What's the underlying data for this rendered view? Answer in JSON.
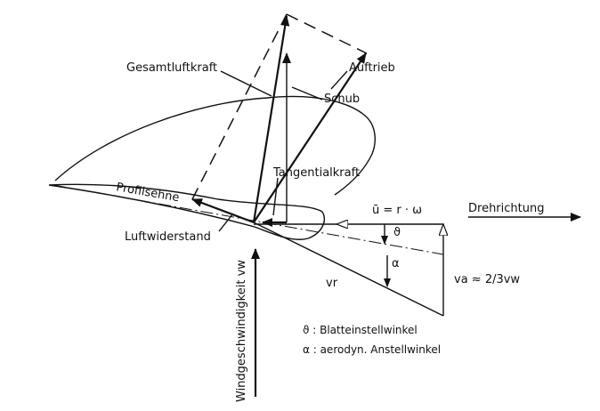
{
  "labels": {
    "gesamtluftkraft": "Gesamtluftkraft",
    "auftrieb": "Auftrieb",
    "schub": "Schub",
    "tangentialkraft": "Tangentialkraft",
    "profilsehne": "Profilsehne",
    "drehrichtung": "Drehrichtung",
    "u_formula": "ū = r · ω",
    "luftwiderstand": "Luftwiderstand",
    "theta_symbol": "ϑ",
    "alpha_symbol": "α",
    "vr": "vr",
    "va_formula": "va ≈ 2/3vw",
    "windgeschwindigkeit": "Windgeschwindigkeit vw",
    "legend_theta": "ϑ : Blatteinstellwinkel",
    "legend_alpha": "α : aerodyn. Anstellwinkel"
  }
}
